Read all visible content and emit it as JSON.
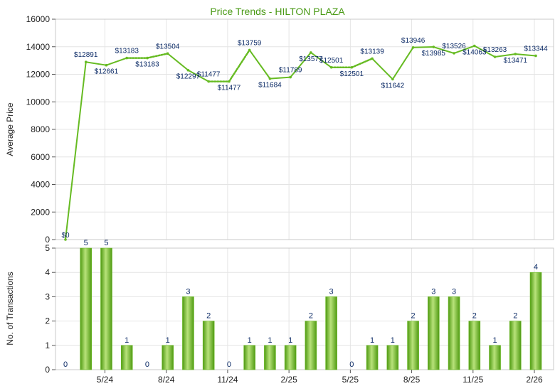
{
  "chart_data": [
    {
      "type": "line",
      "title": "Price Trends - HILTON PLAZA",
      "ylabel": "Average Price",
      "ylim": [
        0,
        16000
      ],
      "y_ticks": [
        0,
        2000,
        4000,
        6000,
        8000,
        10000,
        12000,
        14000,
        16000
      ],
      "x_tick_labels": [
        "5/24",
        "8/24",
        "11/24",
        "2/25",
        "5/25",
        "8/25",
        "11/25",
        "2/26"
      ],
      "values": [
        0,
        12891,
        12661,
        13183,
        13183,
        13504,
        12297,
        11477,
        11477,
        13759,
        11684,
        11789,
        13577,
        12501,
        12501,
        13139,
        11642,
        13946,
        13985,
        13526,
        14063,
        13263,
        13471,
        13344
      ],
      "point_labels": [
        "$0",
        "$12891",
        "$12661",
        "$13183",
        "$13183",
        "$13504",
        "$12297",
        "$11477",
        "$11477",
        "$13759",
        "$11684",
        "$11789",
        "$13577",
        "$12501",
        "$12501",
        "$13139",
        "$11642",
        "$13946",
        "$13985",
        "$13526",
        "$14063",
        "$13263",
        "$13471",
        "$13344"
      ],
      "estimated_points": [
        4,
        8,
        14
      ],
      "line_color": "#66bb22",
      "grid": true
    },
    {
      "type": "bar",
      "ylabel": "No. of Transactions",
      "ylim": [
        0,
        5
      ],
      "y_ticks": [
        0,
        1,
        2,
        3,
        4,
        5
      ],
      "x_tick_labels": [
        "5/24",
        "8/24",
        "11/24",
        "2/25",
        "5/25",
        "8/25",
        "11/25",
        "2/26"
      ],
      "values": [
        0,
        5,
        5,
        1,
        0,
        1,
        3,
        2,
        0,
        1,
        1,
        1,
        2,
        3,
        0,
        1,
        1,
        2,
        3,
        3,
        2,
        1,
        2,
        4
      ],
      "bar_color": "#6cbb26",
      "grid": true
    }
  ]
}
